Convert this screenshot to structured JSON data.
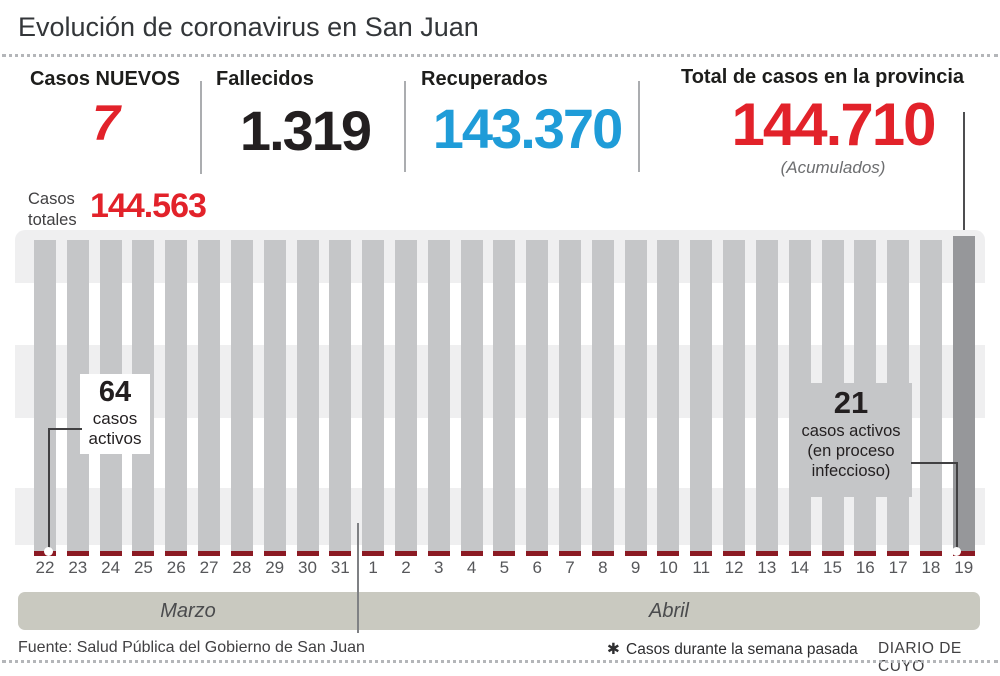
{
  "title": "Evolución de coronavirus en San Juan",
  "stats": {
    "new_cases": {
      "label": "Casos NUEVOS",
      "value": "7",
      "color": "#e2222a"
    },
    "deaths": {
      "label": "Fallecidos",
      "value": "1.319",
      "color": "#231f20"
    },
    "recovered": {
      "label": "Recuperados",
      "value": "143.370",
      "color": "#1f9cd8"
    },
    "total": {
      "label": "Total de casos en la provincia",
      "value": "144.710",
      "note": "(Acumulados)",
      "color": "#e2222a"
    }
  },
  "annotations": {
    "totals_label": "Casos totales",
    "totals_value": "144.563",
    "start": {
      "value": "64",
      "lines": [
        "casos",
        "activos"
      ]
    },
    "end": {
      "value": "21",
      "lines": [
        "casos activos",
        "(en proceso",
        "infeccioso)"
      ]
    }
  },
  "chart_data": {
    "type": "bar",
    "title": "Evolución de coronavirus en San Juan",
    "categories": [
      "22",
      "23",
      "24",
      "25",
      "26",
      "27",
      "28",
      "29",
      "30",
      "31",
      "1",
      "2",
      "3",
      "4",
      "5",
      "6",
      "7",
      "8",
      "9",
      "10",
      "11",
      "12",
      "13",
      "14",
      "15",
      "16",
      "17",
      "18",
      "19"
    ],
    "month_groups": [
      {
        "label": "Marzo",
        "count": 10
      },
      {
        "label": "Abril",
        "count": 19
      }
    ],
    "series": [
      {
        "name": "Casos totales (acumulados)",
        "color": "#c5c6c8",
        "labeled_points": {
          "22 Marzo": 144563,
          "19 Abril": 144710
        },
        "values": [
          144563,
          null,
          null,
          null,
          null,
          null,
          null,
          null,
          null,
          null,
          null,
          null,
          null,
          null,
          null,
          null,
          null,
          null,
          null,
          null,
          null,
          null,
          null,
          null,
          null,
          null,
          null,
          null,
          144710
        ]
      },
      {
        "name": "Casos activos",
        "color": "#8b1a23",
        "labeled_points": {
          "22 Marzo": 64,
          "19 Abril": 21
        },
        "values": [
          64,
          null,
          null,
          null,
          null,
          null,
          null,
          null,
          null,
          null,
          null,
          null,
          null,
          null,
          null,
          null,
          null,
          null,
          null,
          null,
          null,
          null,
          null,
          null,
          null,
          null,
          null,
          null,
          21
        ]
      }
    ],
    "layout_notes": "sin eje y visible; barras de altura casi constante; última barra resaltada en gris oscuro",
    "highlight_last_bar_color": "#96979a",
    "stripe_band_color": "#efeff0",
    "month_band_color": "#c9c9c0"
  },
  "footer": {
    "source": "Fuente: Salud Pública del Gobierno de San Juan",
    "footnote_symbol": "✱",
    "footnote": "Casos durante la semana pasada",
    "brand": "DIARIO DE CUYO"
  }
}
